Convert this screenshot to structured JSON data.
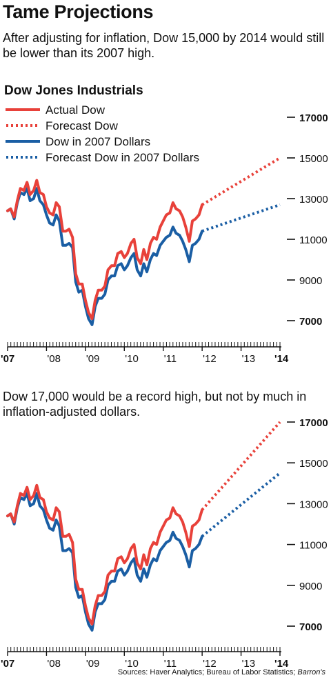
{
  "header": {
    "title": "Tame Projections",
    "subtitle": "After adjusting for inflation, Dow 15,000 by 2014 would still be lower than its 2007 high."
  },
  "chart_data": [
    {
      "type": "line",
      "title": "Dow Jones Industrials",
      "x_unit": "year",
      "x_ticks": [
        2007,
        2008,
        2009,
        2010,
        2011,
        2012,
        2013,
        2014
      ],
      "x_tick_labels": [
        "'07",
        "'08",
        "'09",
        "'10",
        "'11",
        "'12",
        "'13",
        "'14"
      ],
      "xlim": [
        2007.0,
        2014.0
      ],
      "y_ticks": [
        7000,
        9000,
        11000,
        13000,
        15000,
        17000
      ],
      "y_tick_labels": [
        "7000",
        "9000",
        "11000",
        "13000",
        "15000",
        "17000"
      ],
      "ylim": [
        7000,
        17000
      ],
      "legend": "top-left",
      "series": [
        {
          "name": "Actual Dow",
          "color": "#e8413a",
          "style": "solid",
          "x": [
            2007.0,
            2007.08,
            2007.17,
            2007.25,
            2007.33,
            2007.42,
            2007.5,
            2007.58,
            2007.67,
            2007.75,
            2007.83,
            2007.92,
            2008.0,
            2008.08,
            2008.17,
            2008.25,
            2008.33,
            2008.42,
            2008.5,
            2008.58,
            2008.67,
            2008.75,
            2008.83,
            2008.92,
            2009.0,
            2009.08,
            2009.17,
            2009.25,
            2009.33,
            2009.42,
            2009.5,
            2009.58,
            2009.67,
            2009.75,
            2009.83,
            2009.92,
            2010.0,
            2010.08,
            2010.17,
            2010.25,
            2010.33,
            2010.42,
            2010.5,
            2010.58,
            2010.67,
            2010.75,
            2010.83,
            2010.92,
            2011.0,
            2011.08,
            2011.17,
            2011.25,
            2011.33,
            2011.42,
            2011.5,
            2011.58,
            2011.67,
            2011.75,
            2011.83,
            2011.92,
            2012.0
          ],
          "y": [
            12400,
            12500,
            12100,
            12900,
            13500,
            13400,
            13800,
            13200,
            13400,
            13900,
            13300,
            13200,
            12600,
            12300,
            12200,
            12800,
            12600,
            11400,
            11400,
            11500,
            11100,
            9300,
            8800,
            8800,
            8000,
            7400,
            7100,
            8000,
            8500,
            8500,
            8700,
            9500,
            9700,
            9700,
            10300,
            10400,
            10100,
            10300,
            10800,
            11000,
            10100,
            9800,
            10500,
            10000,
            10800,
            11100,
            11000,
            11600,
            11900,
            12200,
            12300,
            12800,
            12500,
            12400,
            12100,
            11600,
            10900,
            11900,
            12000,
            12200,
            12700
          ]
        },
        {
          "name": "Forecast Dow",
          "color": "#e8413a",
          "style": "dotted",
          "x": [
            2012.0,
            2014.0
          ],
          "y": [
            12700,
            15000
          ]
        },
        {
          "name": "Dow in 2007 Dollars",
          "color": "#1a5ea4",
          "style": "solid",
          "x": [
            2007.0,
            2007.08,
            2007.17,
            2007.25,
            2007.33,
            2007.42,
            2007.5,
            2007.58,
            2007.67,
            2007.75,
            2007.83,
            2007.92,
            2008.0,
            2008.08,
            2008.17,
            2008.25,
            2008.33,
            2008.42,
            2008.5,
            2008.58,
            2008.67,
            2008.75,
            2008.83,
            2008.92,
            2009.0,
            2009.08,
            2009.17,
            2009.25,
            2009.33,
            2009.42,
            2009.5,
            2009.58,
            2009.67,
            2009.75,
            2009.83,
            2009.92,
            2010.0,
            2010.08,
            2010.17,
            2010.25,
            2010.33,
            2010.42,
            2010.5,
            2010.58,
            2010.67,
            2010.75,
            2010.83,
            2010.92,
            2011.0,
            2011.08,
            2011.17,
            2011.25,
            2011.33,
            2011.42,
            2011.5,
            2011.58,
            2011.67,
            2011.75,
            2011.83,
            2011.92,
            2012.0
          ],
          "y": [
            12400,
            12500,
            12000,
            12800,
            13300,
            13200,
            13500,
            12900,
            13000,
            13500,
            12900,
            12700,
            12200,
            11800,
            11700,
            12200,
            11900,
            10700,
            10700,
            10800,
            10600,
            8900,
            8400,
            8500,
            7700,
            7100,
            6800,
            7700,
            8100,
            8100,
            8300,
            9000,
            9200,
            9200,
            9700,
            9800,
            9500,
            9700,
            10100,
            10300,
            9500,
            9200,
            9800,
            9400,
            10000,
            10300,
            10200,
            10700,
            10900,
            11100,
            11200,
            11600,
            11300,
            11200,
            10900,
            10500,
            9900,
            10700,
            10800,
            11000,
            11400
          ]
        },
        {
          "name": "Forecast Dow in 2007 Dollars",
          "color": "#1a5ea4",
          "style": "dotted",
          "x": [
            2012.0,
            2014.0
          ],
          "y": [
            11400,
            12700
          ]
        }
      ]
    },
    {
      "type": "line",
      "title": "",
      "subtitle": "Dow 17,000 would be a record high, but not by much in inflation-adjusted dollars.",
      "x_unit": "year",
      "x_ticks": [
        2007,
        2008,
        2009,
        2010,
        2011,
        2012,
        2013,
        2014
      ],
      "x_tick_labels": [
        "'07",
        "'08",
        "'09",
        "'10",
        "'11",
        "'12",
        "'13",
        "'14"
      ],
      "xlim": [
        2007.0,
        2014.0
      ],
      "y_ticks": [
        7000,
        9000,
        11000,
        13000,
        15000,
        17000
      ],
      "y_tick_labels": [
        "7000",
        "9000",
        "11000",
        "13000",
        "15000",
        "17000"
      ],
      "ylim": [
        7000,
        17000
      ],
      "series": [
        {
          "color": "#e8413a",
          "style": "solid",
          "same_as_series": 0
        },
        {
          "color": "#e8413a",
          "style": "dotted",
          "x": [
            2012.0,
            2014.0
          ],
          "y": [
            12700,
            17000
          ]
        },
        {
          "color": "#1a5ea4",
          "style": "solid",
          "same_as_series": 2
        },
        {
          "color": "#1a5ea4",
          "style": "dotted",
          "x": [
            2012.0,
            2014.0
          ],
          "y": [
            11400,
            14500
          ]
        }
      ]
    }
  ],
  "source": {
    "prefix": "Sources: Haver Analytics; Bureau of Labor Statistics; ",
    "publication": "Barron's"
  }
}
